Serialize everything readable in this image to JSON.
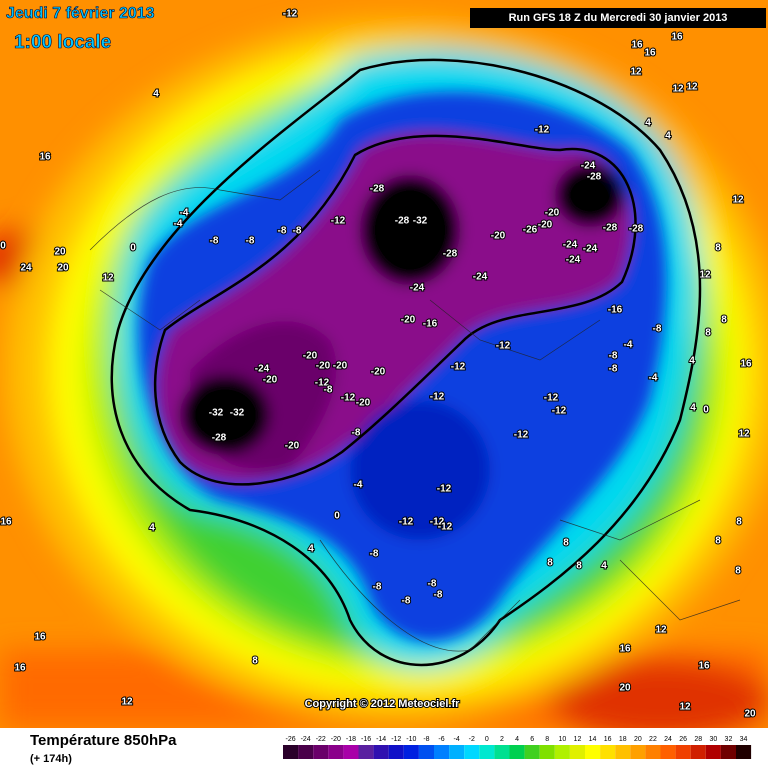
{
  "header": {
    "date": "Jeudi 7 février 2013",
    "time": "1:00 locale",
    "run": "Run GFS 18 Z du Mercredi 30 janvier 2013"
  },
  "copyright": "Copyright © 2012 Meteociel.fr",
  "footer": {
    "title": "Température 850hPa",
    "lead": "(+ 174h)"
  },
  "scale": {
    "ticks": [
      -26,
      -24,
      -22,
      -20,
      -18,
      -16,
      -14,
      -12,
      -10,
      -8,
      -6,
      -4,
      -2,
      0,
      2,
      4,
      6,
      8,
      10,
      12,
      14,
      16,
      18,
      20,
      22,
      24,
      26,
      28,
      30,
      32,
      34
    ],
    "colors": [
      "#2a002a",
      "#4a004a",
      "#6a006a",
      "#8a008a",
      "#a800a8",
      "#5a20a0",
      "#3010b0",
      "#1010c8",
      "#0020e0",
      "#0050f0",
      "#0080ff",
      "#00b0ff",
      "#00d8ff",
      "#00e8d0",
      "#00e090",
      "#00d050",
      "#40d020",
      "#80e000",
      "#b0f000",
      "#e0f000",
      "#ffff00",
      "#ffe000",
      "#ffc000",
      "#ffa000",
      "#ff8000",
      "#ff6000",
      "#f04000",
      "#d02000",
      "#b00000",
      "#700000",
      "#200000"
    ]
  },
  "map_labels": [
    "-12",
    "4",
    "16",
    "0",
    "20",
    "24",
    "20",
    "12",
    "0",
    "-4",
    "-4",
    "-8",
    "-8",
    "-8",
    "-8",
    "-12",
    "-28",
    "-28",
    "-32",
    "-28",
    "-20",
    "-24",
    "-24",
    "-20",
    "-16",
    "-12",
    "-20",
    "-24",
    "-28",
    "-26",
    "-20",
    "-24",
    "-24",
    "-24",
    "-28",
    "-28",
    "-12",
    "-12",
    "-16",
    "-8",
    "-4",
    "-8",
    "-8",
    "-4",
    "-24",
    "-20",
    "-20",
    "-20",
    "-20",
    "-20",
    "-12",
    "-8",
    "-12",
    "-20",
    "-32",
    "-32",
    "-28",
    "-20",
    "-8",
    "-12",
    "-12",
    "-12",
    "-12",
    "-4",
    "-12",
    "0",
    "-12",
    "-12",
    "-12",
    "-8",
    "4",
    "4",
    "16",
    "16",
    "16",
    "12",
    "8",
    "-8",
    "-8",
    "-8",
    "-8",
    "8",
    "8",
    "8",
    "4",
    "16",
    "12",
    "16",
    "20",
    "20",
    "12",
    "8",
    "8",
    "12",
    "16",
    "8",
    "12",
    "12",
    "12",
    "16",
    "16",
    "16",
    "12",
    "12",
    "4",
    "4",
    "8",
    "4",
    "0",
    "4",
    "8",
    "8"
  ]
}
